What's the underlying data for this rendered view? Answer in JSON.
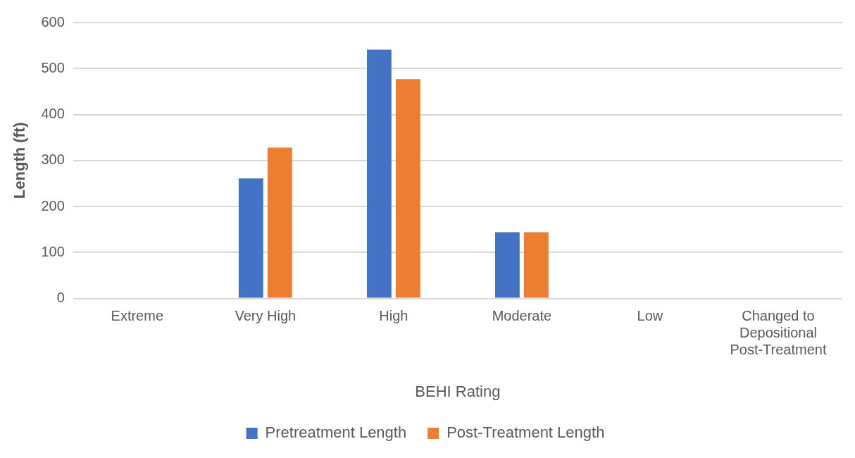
{
  "chart_data": {
    "type": "bar",
    "xlabel": "BEHI Rating",
    "ylabel": "Length (ft)",
    "categories": [
      "Extreme",
      "Very High",
      "High",
      "Moderate",
      "Low",
      "Changed to Depositional Post-Treatment"
    ],
    "series": [
      {
        "name": "Pretreatment Length",
        "color": "#4472c4",
        "values": [
          0,
          261,
          541,
          144,
          0,
          0
        ]
      },
      {
        "name": "Post-Treatment Length",
        "color": "#ed7d31",
        "values": [
          0,
          328,
          477,
          144,
          0,
          0
        ]
      }
    ],
    "ylim": [
      0,
      600
    ],
    "yticks": [
      0,
      100,
      200,
      300,
      400,
      500,
      600
    ],
    "grid": "y",
    "legend": "bottom"
  }
}
